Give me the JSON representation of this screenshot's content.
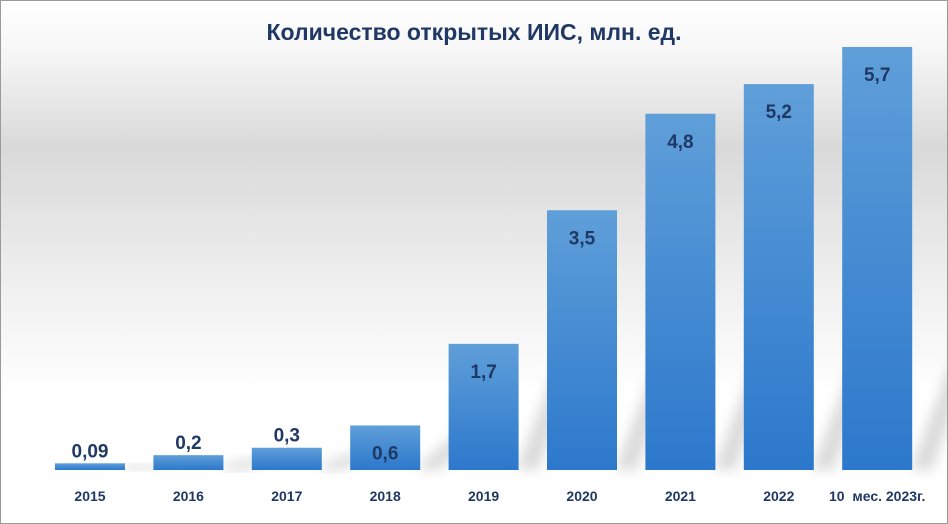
{
  "chart_data": {
    "type": "bar",
    "title": "Количество открытых ИИС, млн. ед.",
    "categories": [
      "2015",
      "2016",
      "2017",
      "2018",
      "2019",
      "2020",
      "2021",
      "2022",
      "10  мес. 2023г."
    ],
    "values": [
      0.09,
      0.2,
      0.3,
      0.6,
      1.7,
      3.5,
      4.8,
      5.2,
      5.7
    ],
    "value_labels": [
      "0,09",
      "0,2",
      "0,3",
      "0,6",
      "1,7",
      "3,5",
      "4,8",
      "5,2",
      "5,7"
    ],
    "ylim": [
      0,
      5.7
    ],
    "grid": false,
    "legend": "none",
    "colors": {
      "bar_top": "#5b9bd5",
      "bar_bottom": "#2e7bcf",
      "text": "#1f3864"
    }
  }
}
